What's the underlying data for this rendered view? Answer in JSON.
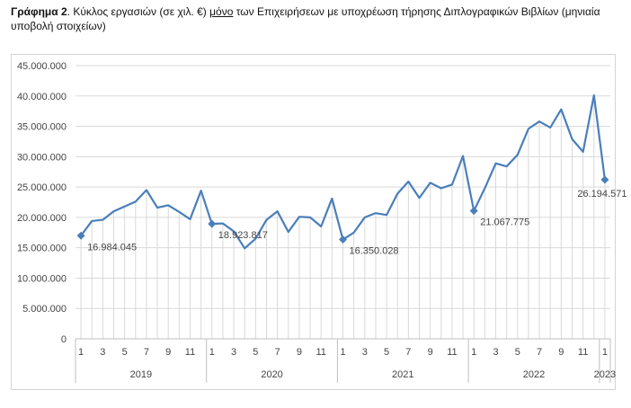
{
  "caption": {
    "label": "Γράφημα 2",
    "text_before": ". Κύκλος εργασιών (σε χιλ. €) ",
    "underlined": "μόνο",
    "text_after": " των Επιχειρήσεων με υποχρέωση τήρησης Διπλογραφικών Βιβλίων (μηνιαία υποβολή στοιχείων)"
  },
  "chart_data": {
    "type": "line",
    "title": "",
    "xlabel": "",
    "ylabel": "",
    "ylim": [
      0,
      45000000
    ],
    "y_ticks": [
      0,
      5000000,
      10000000,
      15000000,
      20000000,
      25000000,
      30000000,
      35000000,
      40000000,
      45000000
    ],
    "y_tick_labels": [
      "0",
      "5.000.000",
      "10.000.000",
      "15.000.000",
      "20.000.000",
      "25.000.000",
      "30.000.000",
      "35.000.000",
      "40.000.000",
      "45.000.000"
    ],
    "grid": true,
    "vertical_drop_lines": true,
    "line_color": "#4a7ebb",
    "drop_line_color": "#d9d9d9",
    "grid_color": "#d9d9d9",
    "years": [
      {
        "label": "2019",
        "months": 12
      },
      {
        "label": "2020",
        "months": 12
      },
      {
        "label": "2021",
        "months": 12
      },
      {
        "label": "2022",
        "months": 12
      },
      {
        "label": "2023",
        "months": 1
      }
    ],
    "month_tick_labels": [
      "1",
      "",
      "3",
      "",
      "5",
      "",
      "7",
      "",
      "9",
      "",
      "11",
      ""
    ],
    "values": [
      16984045,
      19400000,
      19600000,
      21000000,
      21800000,
      22600000,
      24500000,
      21600000,
      22000000,
      20900000,
      19700000,
      24400000,
      18923817,
      19000000,
      17700000,
      14900000,
      16500000,
      19600000,
      21000000,
      17600000,
      20100000,
      20000000,
      18500000,
      23100000,
      16350028,
      17500000,
      20000000,
      20700000,
      20400000,
      23900000,
      25900000,
      23200000,
      25700000,
      24800000,
      25400000,
      30100000,
      21067775,
      24800000,
      28900000,
      28400000,
      30300000,
      34600000,
      35800000,
      34800000,
      37800000,
      32900000,
      30800000,
      40100000,
      26194571
    ],
    "highlighted": [
      {
        "index": 0,
        "label": "16.984.045"
      },
      {
        "index": 12,
        "label": "18.923.817"
      },
      {
        "index": 24,
        "label": "16.350.028"
      },
      {
        "index": 36,
        "label": "21.067.775"
      },
      {
        "index": 48,
        "label": "26.194.571"
      }
    ]
  }
}
